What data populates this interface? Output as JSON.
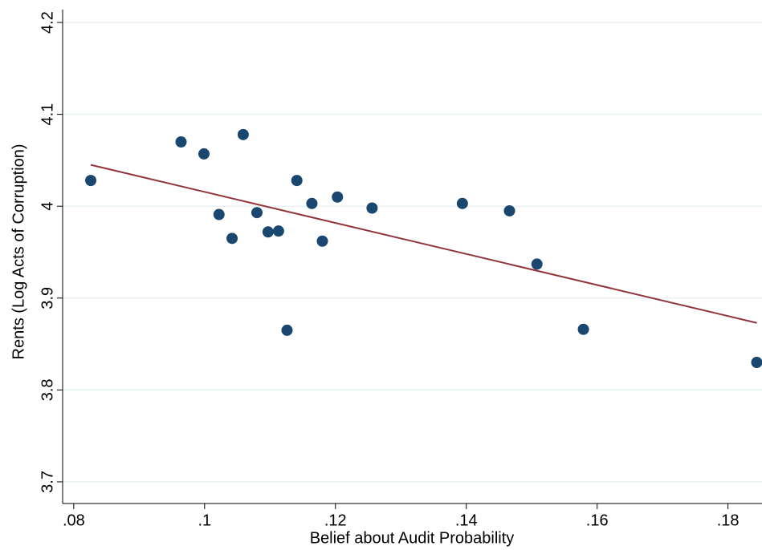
{
  "chart_data": {
    "type": "scatter",
    "x_label": "Belief about Audit Probability",
    "y_label": "Rents (Log Acts of Corruption)",
    "xlim": [
      0.0783,
      0.1852
    ],
    "ylim": [
      3.6764,
      4.214
    ],
    "xticks": [
      {
        "value": 0.08,
        "label": ".08"
      },
      {
        "value": 0.1,
        "label": ".1"
      },
      {
        "value": 0.12,
        "label": ".12"
      },
      {
        "value": 0.14,
        "label": ".14"
      },
      {
        "value": 0.16,
        "label": ".16"
      },
      {
        "value": 0.18,
        "label": ".18"
      }
    ],
    "yticks": [
      3.7,
      3.8,
      3.9,
      4,
      4.1,
      4.2
    ],
    "grid": true,
    "series": [
      {
        "type": "scatter",
        "color": "#1a476f",
        "x": [
          0.0826,
          0.0964,
          0.0999,
          0.1022,
          0.1042,
          0.1059,
          0.108,
          0.1097,
          0.1113,
          0.1126,
          0.1141,
          0.1164,
          0.118,
          0.1203,
          0.1256,
          0.1394,
          0.1466,
          0.1508,
          0.1579,
          0.1844
        ],
        "values": [
          4.028,
          4.07,
          4.057,
          3.991,
          3.965,
          4.078,
          3.993,
          3.972,
          3.973,
          3.865,
          4.028,
          4.003,
          3.962,
          4.01,
          3.998,
          4.003,
          3.995,
          3.937,
          3.866,
          3.83
        ]
      },
      {
        "type": "line",
        "color": "#90353b",
        "x": [
          0.0826,
          0.1844
        ],
        "values": [
          4.045,
          3.873
        ]
      }
    ]
  }
}
